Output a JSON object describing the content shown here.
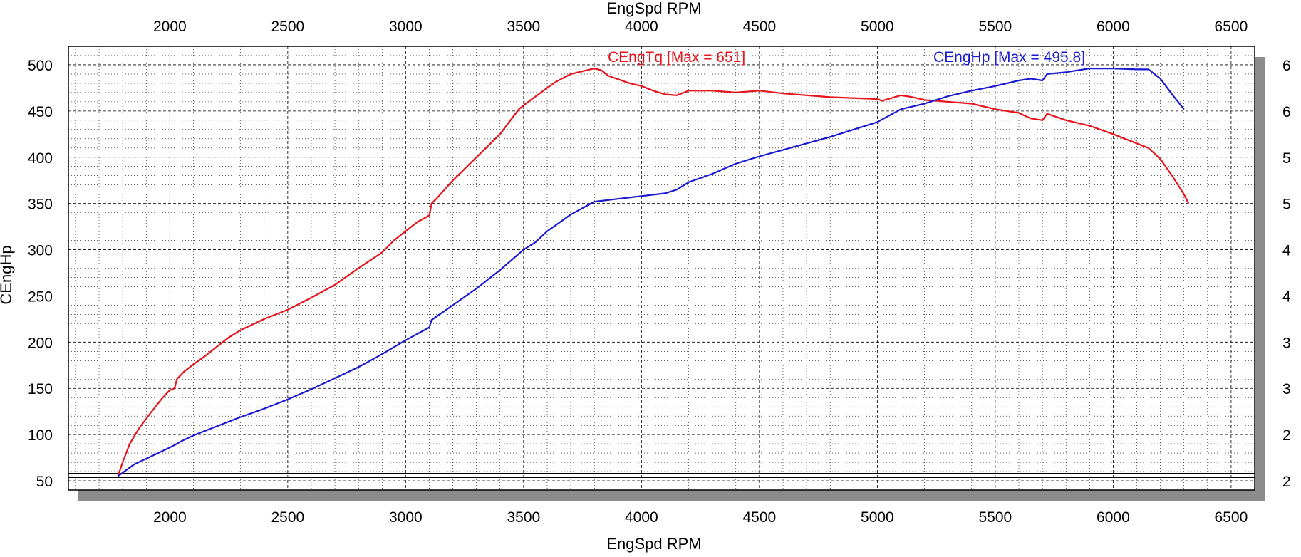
{
  "chart_data": {
    "type": "line",
    "top_xlabel": "EngSpd RPM",
    "xlabel": "EngSpd RPM",
    "ylabel": "CEngHp",
    "xlim": [
      1570,
      6600
    ],
    "ylim": [
      40,
      520
    ],
    "x_ticks": [
      2000,
      2500,
      3000,
      3500,
      4000,
      4500,
      5000,
      5500,
      6000,
      6500
    ],
    "y_ticks": [
      50,
      100,
      150,
      200,
      250,
      300,
      350,
      400,
      450,
      500
    ],
    "right_axis_tick_labels": [
      "6",
      "6",
      "5",
      "5",
      "4",
      "4",
      "3",
      "3",
      "2",
      "2"
    ],
    "grid": true,
    "series": [
      {
        "name": "CEngTq",
        "label": "CEngTq [Max = 651]",
        "color": "#e8141b",
        "x": [
          1780,
          1800,
          1830,
          1870,
          1920,
          1970,
          2000,
          2020,
          2030,
          2060,
          2100,
          2150,
          2200,
          2250,
          2300,
          2400,
          2500,
          2600,
          2700,
          2800,
          2900,
          2950,
          3000,
          3050,
          3100,
          3110,
          3130,
          3200,
          3300,
          3400,
          3480,
          3520,
          3600,
          3640,
          3700,
          3800,
          3830,
          3860,
          3950,
          4000,
          4050,
          4100,
          4150,
          4200,
          4300,
          4400,
          4500,
          4600,
          4700,
          4800,
          5000,
          5020,
          5100,
          5150,
          5200,
          5400,
          5500,
          5600,
          5650,
          5700,
          5720,
          5800,
          5900,
          6000,
          6100,
          6150,
          6200,
          6250,
          6300,
          6320
        ],
        "y": [
          55,
          70,
          90,
          107,
          124,
          140,
          148,
          150,
          160,
          168,
          176,
          185,
          195,
          205,
          213,
          225,
          235,
          248,
          262,
          280,
          297,
          310,
          320,
          330,
          337,
          350,
          355,
          375,
          400,
          425,
          452,
          460,
          475,
          482,
          490,
          496,
          494,
          488,
          480,
          477,
          472,
          468,
          467,
          472,
          472,
          470,
          472,
          469,
          467,
          465,
          463,
          461,
          467,
          465,
          462,
          458,
          452,
          448,
          442,
          440,
          447,
          440,
          434,
          425,
          415,
          410,
          398,
          380,
          360,
          350
        ]
      },
      {
        "name": "CEngHp",
        "label": "CEngHp [Max = 495.8]",
        "color": "#1a1ad4",
        "x": [
          1780,
          1850,
          1950,
          2000,
          2030,
          2050,
          2100,
          2200,
          2300,
          2400,
          2500,
          2600,
          2700,
          2800,
          2900,
          3000,
          3100,
          3110,
          3200,
          3300,
          3400,
          3500,
          3550,
          3600,
          3700,
          3800,
          3900,
          4000,
          4100,
          4150,
          4200,
          4300,
          4400,
          4500,
          4600,
          4700,
          4800,
          4900,
          5000,
          5050,
          5100,
          5150,
          5200,
          5300,
          5400,
          5500,
          5600,
          5650,
          5700,
          5720,
          5800,
          5900,
          6000,
          6100,
          6150,
          6200,
          6250,
          6300
        ],
        "y": [
          55,
          68,
          80,
          86,
          90,
          93,
          99,
          109,
          119,
          128,
          138,
          149,
          161,
          173,
          187,
          202,
          216,
          224,
          240,
          258,
          278,
          300,
          308,
          320,
          338,
          352,
          355,
          358,
          361,
          365,
          373,
          382,
          393,
          401,
          408,
          415,
          422,
          430,
          438,
          445,
          452,
          455,
          458,
          466,
          472,
          477,
          483,
          485,
          483,
          490,
          492,
          496,
          496,
          495,
          495,
          485,
          468,
          452
        ]
      }
    ]
  }
}
